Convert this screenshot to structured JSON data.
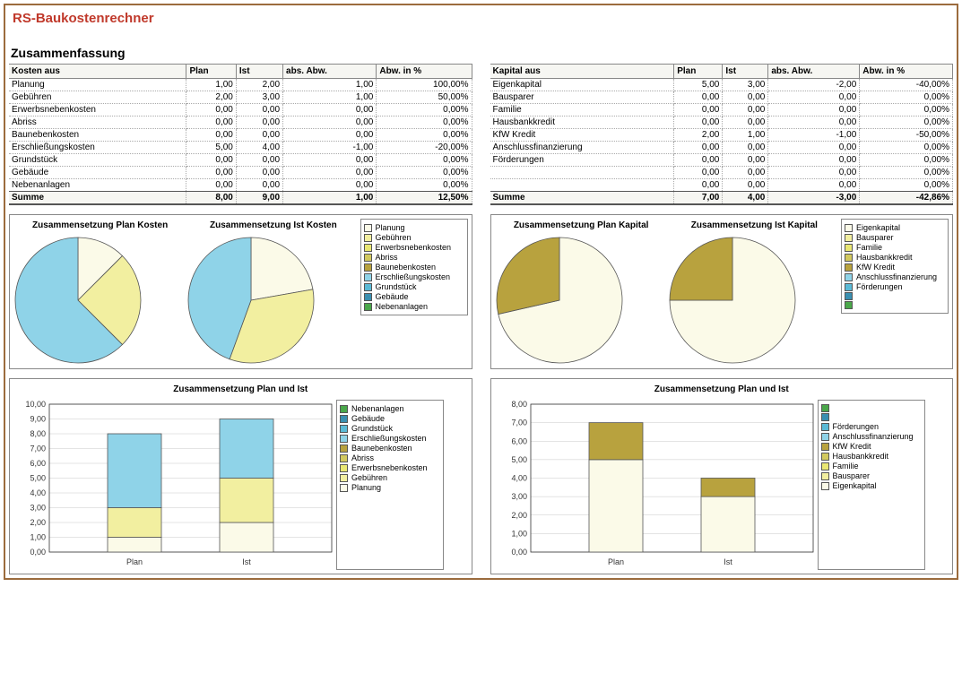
{
  "title": "RS-Baukostenrechner",
  "summary_heading": "Zusammenfassung",
  "palette": {
    "c0": "#fbfae8",
    "c1": "#f2efa0",
    "c2": "#e9e773",
    "c3": "#d2c95f",
    "c4": "#b8a23e",
    "c5": "#8fd3e8",
    "c6": "#5bbad6",
    "c7": "#3a8fb0",
    "c8": "#4aa74a",
    "border": "#555555",
    "grid": "#c8c8c8",
    "axis": "#333333"
  },
  "kosten": {
    "heading": "Kosten aus",
    "columns": [
      "Plan",
      "Ist",
      "abs. Abw.",
      "Abw. in %"
    ],
    "rows": [
      {
        "label": "Planung",
        "plan": "1,00",
        "ist": "2,00",
        "abs": "1,00",
        "pct": "100,00%"
      },
      {
        "label": "Gebühren",
        "plan": "2,00",
        "ist": "3,00",
        "abs": "1,00",
        "pct": "50,00%"
      },
      {
        "label": "Erwerbsnebenkosten",
        "plan": "0,00",
        "ist": "0,00",
        "abs": "0,00",
        "pct": "0,00%"
      },
      {
        "label": "Abriss",
        "plan": "0,00",
        "ist": "0,00",
        "abs": "0,00",
        "pct": "0,00%"
      },
      {
        "label": "Baunebenkosten",
        "plan": "0,00",
        "ist": "0,00",
        "abs": "0,00",
        "pct": "0,00%"
      },
      {
        "label": "Erschließungskosten",
        "plan": "5,00",
        "ist": "4,00",
        "abs": "-1,00",
        "pct": "-20,00%"
      },
      {
        "label": "Grundstück",
        "plan": "0,00",
        "ist": "0,00",
        "abs": "0,00",
        "pct": "0,00%"
      },
      {
        "label": "Gebäude",
        "plan": "0,00",
        "ist": "0,00",
        "abs": "0,00",
        "pct": "0,00%"
      },
      {
        "label": "Nebenanlagen",
        "plan": "0,00",
        "ist": "0,00",
        "abs": "0,00",
        "pct": "0,00%"
      }
    ],
    "sum": {
      "label": "Summe",
      "plan": "8,00",
      "ist": "9,00",
      "abs": "1,00",
      "pct": "12,50%"
    }
  },
  "kapital": {
    "heading": "Kapital aus",
    "columns": [
      "Plan",
      "Ist",
      "abs. Abw.",
      "Abw. in %"
    ],
    "rows": [
      {
        "label": "Eigenkapital",
        "plan": "5,00",
        "ist": "3,00",
        "abs": "-2,00",
        "pct": "-40,00%"
      },
      {
        "label": "Bausparer",
        "plan": "0,00",
        "ist": "0,00",
        "abs": "0,00",
        "pct": "0,00%"
      },
      {
        "label": "Familie",
        "plan": "0,00",
        "ist": "0,00",
        "abs": "0,00",
        "pct": "0,00%"
      },
      {
        "label": "Hausbankkredit",
        "plan": "0,00",
        "ist": "0,00",
        "abs": "0,00",
        "pct": "0,00%"
      },
      {
        "label": "KfW Kredit",
        "plan": "2,00",
        "ist": "1,00",
        "abs": "-1,00",
        "pct": "-50,00%"
      },
      {
        "label": "Anschlussfinanzierung",
        "plan": "0,00",
        "ist": "0,00",
        "abs": "0,00",
        "pct": "0,00%"
      },
      {
        "label": "Förderungen",
        "plan": "0,00",
        "ist": "0,00",
        "abs": "0,00",
        "pct": "0,00%"
      },
      {
        "label": "",
        "plan": "0,00",
        "ist": "0,00",
        "abs": "0,00",
        "pct": "0,00%"
      },
      {
        "label": "",
        "plan": "0,00",
        "ist": "0,00",
        "abs": "0,00",
        "pct": "0,00%"
      }
    ],
    "sum": {
      "label": "Summe",
      "plan": "7,00",
      "ist": "4,00",
      "abs": "-3,00",
      "pct": "-42,86%"
    }
  },
  "pies": {
    "kosten": {
      "titles": [
        "Zusammensetzung Plan Kosten",
        "Zusammensetzung Ist Kosten"
      ],
      "legend": [
        "Planung",
        "Gebühren",
        "Erwerbsnebenkosten",
        "Abriss",
        "Baunebenkosten",
        "Erschließungskosten",
        "Grundstück",
        "Gebäude",
        "Nebenanlagen"
      ],
      "colors": [
        "c0",
        "c1",
        "c2",
        "c3",
        "c4",
        "c5",
        "c6",
        "c7",
        "c8"
      ],
      "plan_values": [
        1,
        2,
        0,
        0,
        0,
        5,
        0,
        0,
        0
      ],
      "ist_values": [
        2,
        3,
        0,
        0,
        0,
        4,
        0,
        0,
        0
      ]
    },
    "kapital": {
      "titles": [
        "Zusammensetzung Plan Kapital",
        "Zusammensetzung Ist Kapital"
      ],
      "legend": [
        "Eigenkapital",
        "Bausparer",
        "Familie",
        "Hausbankkredit",
        "KfW Kredit",
        "Anschlussfinanzierung",
        "Förderungen",
        "",
        ""
      ],
      "colors": [
        "c0",
        "c1",
        "c2",
        "c3",
        "c4",
        "c5",
        "c6",
        "c7",
        "c8"
      ],
      "plan_values": [
        5,
        0,
        0,
        0,
        2,
        0,
        0,
        0,
        0
      ],
      "ist_values": [
        3,
        0,
        0,
        0,
        1,
        0,
        0,
        0,
        0
      ]
    }
  },
  "bars": {
    "kosten": {
      "title": "Zusammensetzung Plan und Ist",
      "ymax": 10,
      "ytick": 1,
      "categories": [
        "Plan",
        "Ist"
      ],
      "legend": [
        "Nebenanlagen",
        "Gebäude",
        "Grundstück",
        "Erschließungskosten",
        "Baunebenkosten",
        "Abriss",
        "Erwerbsnebenkosten",
        "Gebühren",
        "Planung"
      ],
      "colors": [
        "c8",
        "c7",
        "c6",
        "c5",
        "c4",
        "c3",
        "c2",
        "c1",
        "c0"
      ],
      "stacks": [
        [
          {
            "k": "c0",
            "v": 1
          },
          {
            "k": "c1",
            "v": 2
          },
          {
            "k": "c5",
            "v": 5
          }
        ],
        [
          {
            "k": "c0",
            "v": 2
          },
          {
            "k": "c1",
            "v": 3
          },
          {
            "k": "c5",
            "v": 4
          }
        ]
      ]
    },
    "kapital": {
      "title": "Zusammensetzung Plan und Ist",
      "ymax": 8,
      "ytick": 1,
      "categories": [
        "Plan",
        "Ist"
      ],
      "legend": [
        "",
        "",
        "Förderungen",
        "Anschlussfinanzierung",
        "KfW Kredit",
        "Hausbankkredit",
        "Familie",
        "Bausparer",
        "Eigenkapital"
      ],
      "colors": [
        "c8",
        "c7",
        "c6",
        "c5",
        "c4",
        "c3",
        "c2",
        "c1",
        "c0"
      ],
      "stacks": [
        [
          {
            "k": "c0",
            "v": 5
          },
          {
            "k": "c4",
            "v": 2
          }
        ],
        [
          {
            "k": "c0",
            "v": 3
          },
          {
            "k": "c4",
            "v": 1
          }
        ]
      ]
    }
  }
}
